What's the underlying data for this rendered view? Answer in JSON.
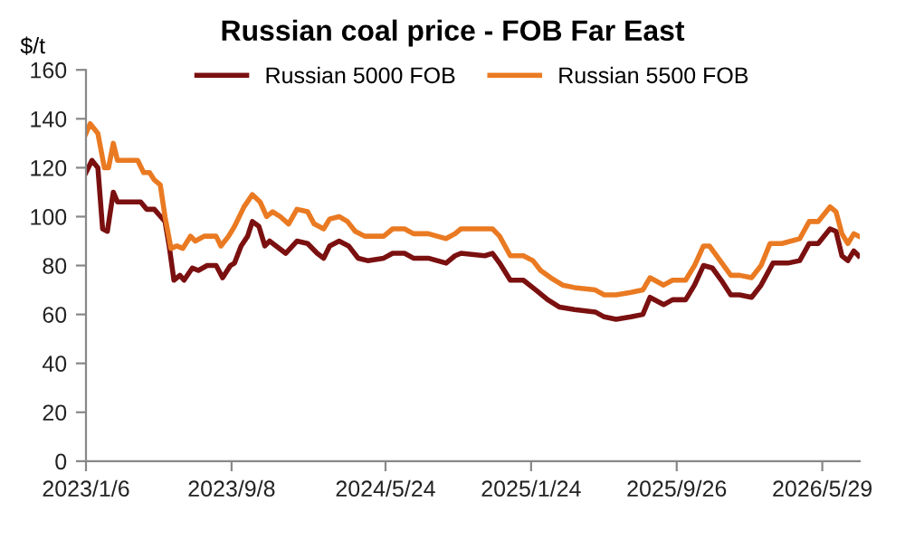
{
  "chart_data": {
    "type": "line",
    "title": "Russian coal price - FOB Far East",
    "ylabel": "$/t",
    "xlim": [
      "2023-01-06",
      "2026-07-31"
    ],
    "ylim": [
      0,
      160
    ],
    "yticks": [
      0,
      20,
      40,
      60,
      80,
      100,
      120,
      140,
      160
    ],
    "xticks": [
      {
        "value": "2023-01-06",
        "label": "2023/1/6"
      },
      {
        "value": "2023-09-08",
        "label": "2023/9/8"
      },
      {
        "value": "2024-05-24",
        "label": "2024/5/24"
      },
      {
        "value": "2025-01-24",
        "label": "2025/1/24"
      },
      {
        "value": "2025-09-26",
        "label": "2025/9/26"
      },
      {
        "value": "2026-05-29",
        "label": "2026/5/29"
      }
    ],
    "grid": false,
    "legend": "top",
    "marker": "none",
    "line_style": "solid",
    "series": [
      {
        "name": "Russian 5000 FOB",
        "color": "#7b1010",
        "x": [
          "2023-01-06",
          "2023-01-16",
          "2023-01-26",
          "2023-02-03",
          "2023-02-11",
          "2023-02-21",
          "2023-02-28",
          "2023-04-08",
          "2023-04-18",
          "2023-05-01",
          "2023-05-08",
          "2023-05-19",
          "2023-05-26",
          "2023-06-03",
          "2023-06-13",
          "2023-06-20",
          "2023-07-04",
          "2023-07-14",
          "2023-07-29",
          "2023-08-13",
          "2023-08-24",
          "2023-09-06",
          "2023-09-13",
          "2023-09-24",
          "2023-10-05",
          "2023-10-13",
          "2023-10-24",
          "2023-11-03",
          "2023-11-11",
          "2023-11-22",
          "2023-12-08",
          "2023-12-27",
          "2024-01-14",
          "2024-01-30",
          "2024-02-10",
          "2024-02-20",
          "2024-03-07",
          "2024-03-23",
          "2024-04-08",
          "2024-04-24",
          "2024-05-21",
          "2024-06-05",
          "2024-06-25",
          "2024-07-10",
          "2024-08-04",
          "2024-09-03",
          "2024-09-18",
          "2024-09-28",
          "2024-11-07",
          "2024-11-20",
          "2024-12-02",
          "2024-12-20",
          "2025-01-11",
          "2025-02-01",
          "2025-02-21",
          "2025-03-13",
          "2025-04-07",
          "2025-05-12",
          "2025-05-27",
          "2025-06-16",
          "2025-07-11",
          "2025-07-31",
          "2025-08-12",
          "2025-09-04",
          "2025-09-19",
          "2025-10-11",
          "2025-10-26",
          "2025-11-10",
          "2025-11-25",
          "2025-12-10",
          "2025-12-26",
          "2026-01-10",
          "2026-01-30",
          "2026-02-15",
          "2026-03-07",
          "2026-04-01",
          "2026-04-21",
          "2026-05-07",
          "2026-05-22",
          "2026-06-11",
          "2026-06-21",
          "2026-07-01",
          "2026-07-11",
          "2026-07-21",
          "2026-07-29"
        ],
        "values": [
          118,
          123,
          120,
          95,
          94,
          110,
          106,
          106,
          103,
          103,
          101,
          98,
          88,
          74,
          76,
          74,
          79,
          78,
          80,
          80,
          75,
          80,
          81,
          88,
          92,
          98,
          96,
          88,
          90,
          88,
          85,
          90,
          89,
          85,
          83,
          88,
          90,
          88,
          83,
          82,
          83,
          85,
          85,
          83,
          83,
          81,
          84,
          85,
          84,
          85,
          81,
          74,
          74,
          70,
          66,
          63,
          62,
          61,
          59,
          58,
          59,
          60,
          67,
          64,
          66,
          66,
          72,
          80,
          79,
          74,
          68,
          68,
          67,
          72,
          81,
          81,
          82,
          89,
          89,
          95,
          94,
          84,
          82,
          86,
          84
        ]
      },
      {
        "name": "Russian 5500 FOB",
        "color": "#ea7a22",
        "x": [
          "2023-01-06",
          "2023-01-13",
          "2023-01-26",
          "2023-02-06",
          "2023-02-13",
          "2023-02-21",
          "2023-02-28",
          "2023-04-03",
          "2023-04-13",
          "2023-04-23",
          "2023-05-01",
          "2023-05-11",
          "2023-05-19",
          "2023-05-29",
          "2023-06-08",
          "2023-06-18",
          "2023-07-01",
          "2023-07-09",
          "2023-07-24",
          "2023-08-13",
          "2023-08-21",
          "2023-09-03",
          "2023-09-13",
          "2023-09-29",
          "2023-10-13",
          "2023-10-26",
          "2023-11-06",
          "2023-11-16",
          "2023-11-29",
          "2023-12-13",
          "2023-12-27",
          "2024-01-14",
          "2024-01-25",
          "2024-02-10",
          "2024-02-20",
          "2024-03-07",
          "2024-03-21",
          "2024-04-03",
          "2024-04-19",
          "2024-05-21",
          "2024-06-05",
          "2024-06-25",
          "2024-07-10",
          "2024-08-04",
          "2024-09-03",
          "2024-09-18",
          "2024-09-28",
          "2024-11-07",
          "2024-11-20",
          "2024-12-02",
          "2024-12-20",
          "2025-01-11",
          "2025-01-27",
          "2025-02-09",
          "2025-02-26",
          "2025-03-18",
          "2025-04-07",
          "2025-05-12",
          "2025-05-27",
          "2025-06-16",
          "2025-07-11",
          "2025-07-31",
          "2025-08-12",
          "2025-09-04",
          "2025-09-19",
          "2025-10-11",
          "2025-10-26",
          "2025-11-10",
          "2025-11-20",
          "2025-12-05",
          "2025-12-26",
          "2026-01-10",
          "2026-01-30",
          "2026-02-15",
          "2026-03-02",
          "2026-03-22",
          "2026-04-21",
          "2026-05-07",
          "2026-05-22",
          "2026-06-11",
          "2026-06-21",
          "2026-07-01",
          "2026-07-11",
          "2026-07-21",
          "2026-07-29"
        ],
        "values": [
          134,
          138,
          134,
          120,
          120,
          130,
          123,
          123,
          118,
          118,
          115,
          113,
          100,
          87,
          88,
          87,
          92,
          90,
          92,
          92,
          88,
          92,
          96,
          104,
          109,
          106,
          100,
          102,
          100,
          97,
          103,
          102,
          97,
          95,
          99,
          100,
          98,
          94,
          92,
          92,
          95,
          95,
          93,
          93,
          91,
          93,
          95,
          95,
          95,
          92,
          84,
          84,
          82,
          78,
          75,
          72,
          71,
          70,
          68,
          68,
          69,
          70,
          75,
          72,
          74,
          74,
          80,
          88,
          88,
          83,
          76,
          76,
          75,
          80,
          89,
          89,
          91,
          98,
          98,
          104,
          102,
          93,
          89,
          93,
          92
        ]
      }
    ]
  }
}
